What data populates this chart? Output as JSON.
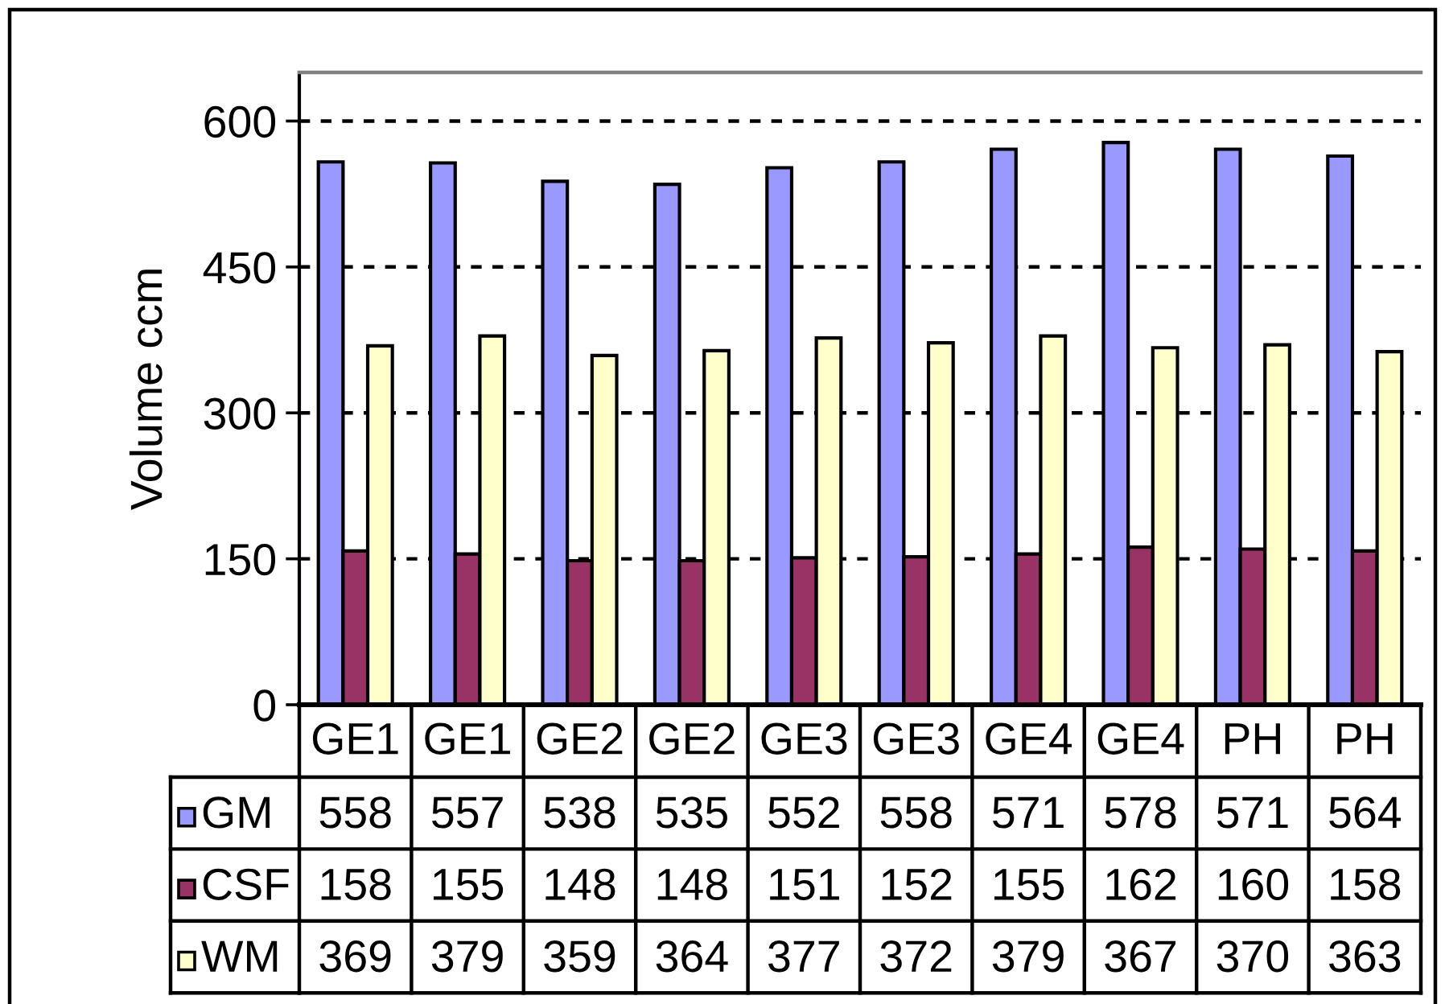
{
  "chart_data": {
    "type": "bar",
    "ylabel": "Volume ccm",
    "categories": [
      "GE1",
      "GE1",
      "GE2",
      "GE2",
      "GE3",
      "GE3",
      "GE4",
      "GE4",
      "PH",
      "PH"
    ],
    "series": [
      {
        "name": "GM",
        "color": "#9999ff",
        "values": [
          558,
          557,
          538,
          535,
          552,
          558,
          571,
          578,
          571,
          564
        ]
      },
      {
        "name": "CSF",
        "color": "#993366",
        "values": [
          158,
          155,
          148,
          148,
          151,
          152,
          155,
          162,
          160,
          158
        ]
      },
      {
        "name": "WM",
        "color": "#ffffcc",
        "values": [
          369,
          379,
          359,
          364,
          377,
          372,
          379,
          367,
          370,
          363
        ]
      }
    ],
    "ylim": [
      0,
      650
    ],
    "yticks": [
      0,
      150,
      300,
      450,
      600
    ],
    "grid": "y",
    "legend": "bottom",
    "data_labels": true
  }
}
